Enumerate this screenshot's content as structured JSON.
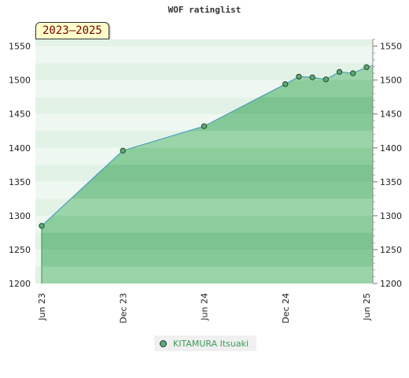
{
  "chart_data": {
    "type": "area",
    "title": "WOF ratinglist",
    "period_label": "2023–2025",
    "xlabel": "",
    "ylabel": "",
    "x_tick_labels": [
      "Jun 23",
      "Dec 23",
      "Jun 24",
      "Dec 24",
      "Jun 25"
    ],
    "x_tick_dates": [
      "2023-06",
      "2023-12",
      "2024-06",
      "2024-12",
      "2025-06"
    ],
    "y_ticks": [
      1200,
      1250,
      1300,
      1350,
      1400,
      1450,
      1500,
      1550
    ],
    "ylim": [
      1200,
      1560
    ],
    "right_axis": true,
    "legend_position": "bottom",
    "series": [
      {
        "name": "KITAMURA Itsuaki",
        "color": "#5aaa6e",
        "points": [
          {
            "date": "2023-06",
            "value": 1285
          },
          {
            "date": "2023-12",
            "value": 1396
          },
          {
            "date": "2024-06",
            "value": 1432
          },
          {
            "date": "2024-12",
            "value": 1494
          },
          {
            "date": "2025-01",
            "value": 1505
          },
          {
            "date": "2025-02",
            "value": 1504
          },
          {
            "date": "2025-03",
            "value": 1501
          },
          {
            "date": "2025-04",
            "value": 1512
          },
          {
            "date": "2025-05",
            "value": 1510
          },
          {
            "date": "2025-06",
            "value": 1519
          }
        ]
      }
    ]
  }
}
